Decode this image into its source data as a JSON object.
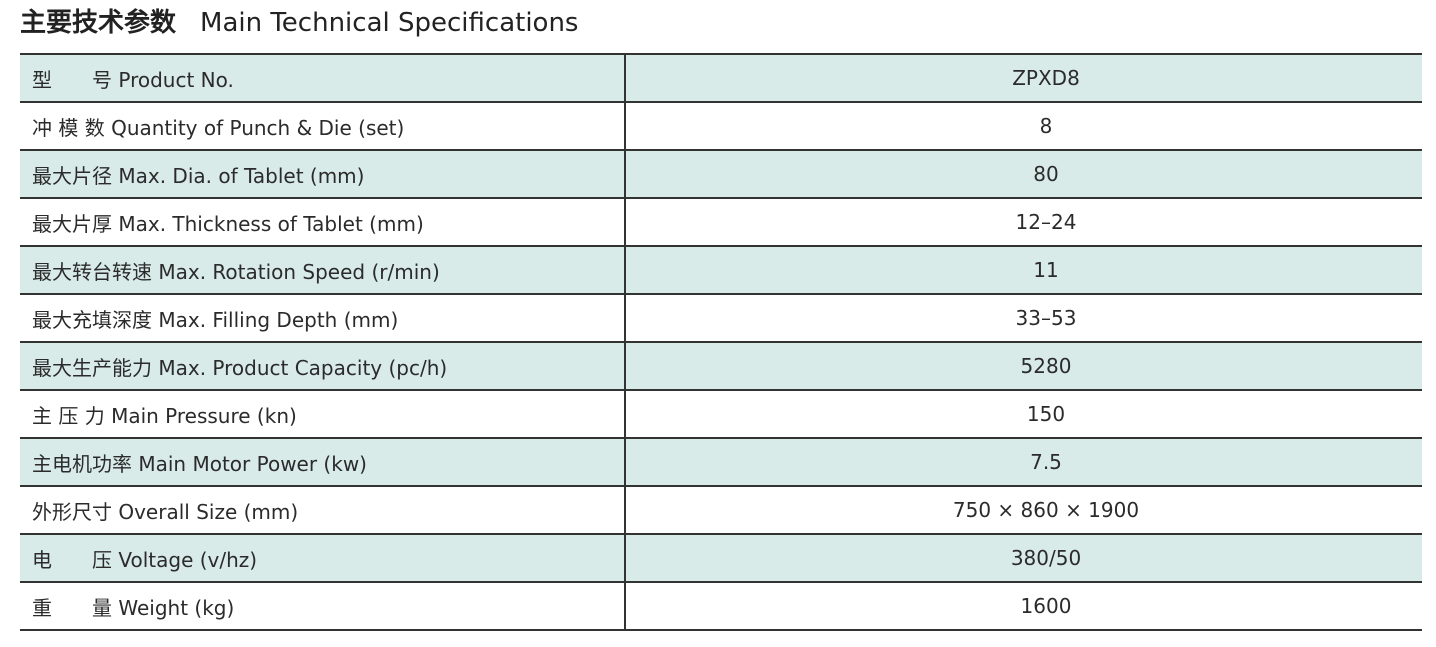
{
  "header": {
    "title_zh": "主要技术参数",
    "title_en": "Main Technical Specifications"
  },
  "table": {
    "rows": [
      [
        "型　　号 Product No.",
        "ZPXD8"
      ],
      [
        "冲 模 数 Quantity of Punch & Die (set)",
        "8"
      ],
      [
        "最大片径 Max. Dia. of Tablet (mm)",
        "80"
      ],
      [
        "最大片厚 Max. Thickness of Tablet (mm)",
        "12–24"
      ],
      [
        "最大转台转速 Max. Rotation Speed (r/min)",
        "11"
      ],
      [
        "最大充填深度 Max. Filling Depth (mm)",
        "33–53"
      ],
      [
        "最大生产能力 Max. Product Capacity (pc/h)",
        "5280"
      ],
      [
        "主 压 力 Main Pressure (kn)",
        "150"
      ],
      [
        "主电机功率 Main Motor Power (kw)",
        "7.5"
      ],
      [
        "外形尺寸 Overall Size (mm)",
        "750 × 860 × 1900"
      ],
      [
        "电　　压 Voltage (v/hz)",
        "380/50"
      ],
      [
        "重　　量 Weight (kg)",
        "1600"
      ]
    ]
  }
}
